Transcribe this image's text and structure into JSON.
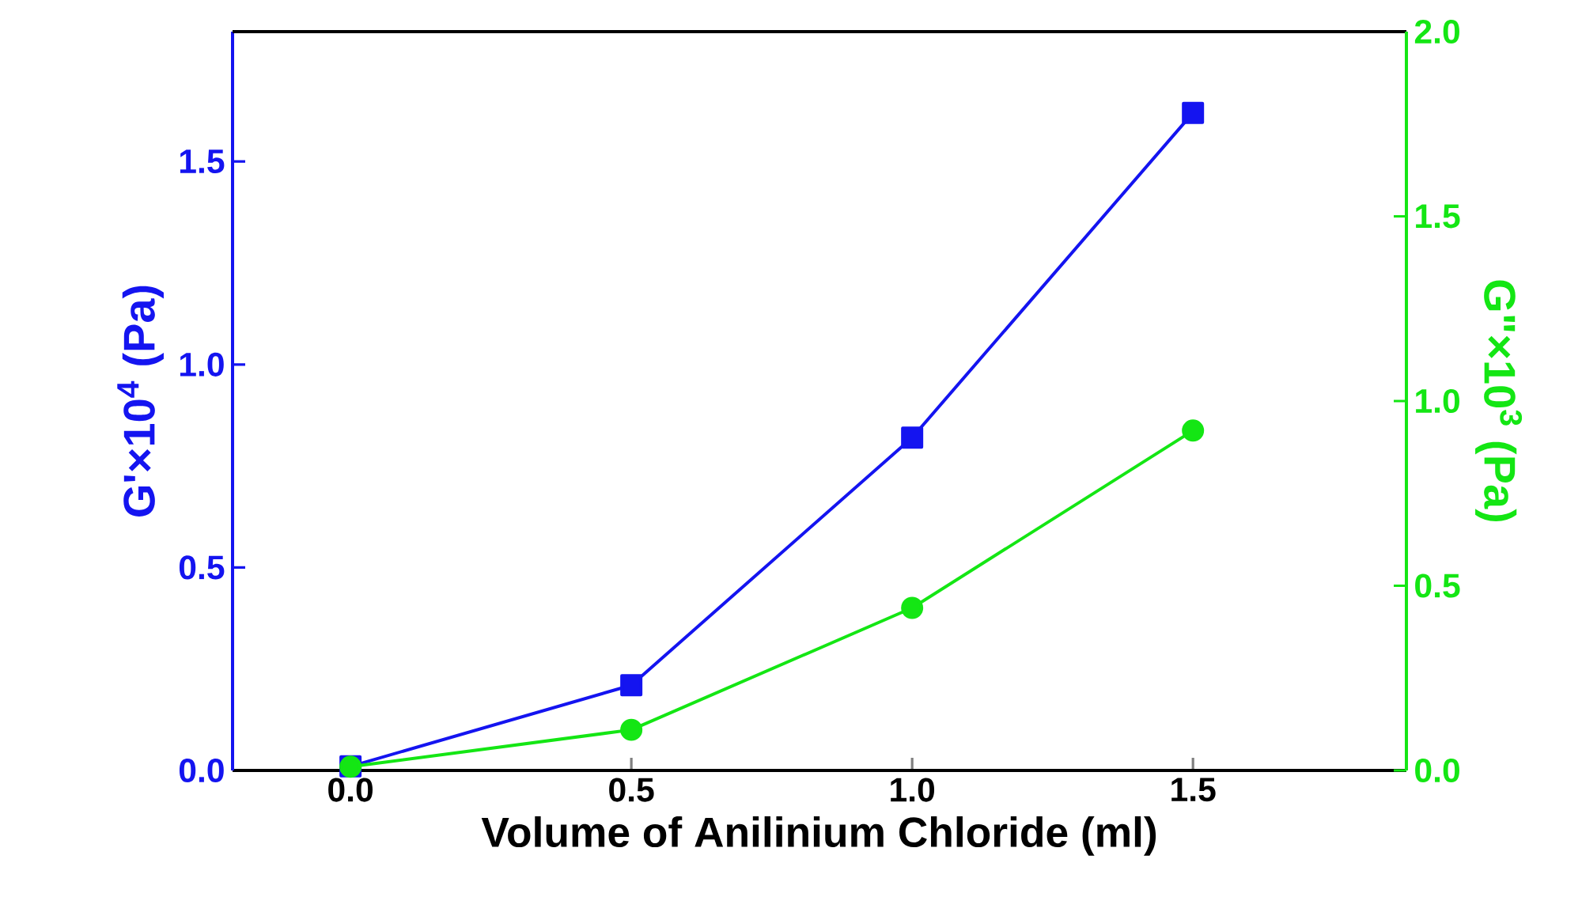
{
  "chart_data": {
    "type": "line",
    "xlabel": "Volume of Anilinium Chloride (ml)",
    "ylabel": "G'×10$^{4}$ (Pa)",
    "y2label": "G\"×10$^{3}$ (Pa)",
    "x": [
      0,
      0.5,
      1.0,
      1.5
    ],
    "series": [
      {
        "color": "#1414f0",
        "values": [
          0.01,
          0.21,
          0.82,
          1.62
        ],
        "marker": "square"
      },
      {
        "color": "#14e614",
        "values": [
          0.01,
          0.11,
          0.44,
          0.92
        ],
        "marker": "circle",
        "axis": "y2"
      }
    ],
    "xlim": [
      -0.21,
      1.88
    ],
    "ylim": [
      0,
      1.82
    ],
    "y2lim": [
      0,
      2.0
    ],
    "xticks": [
      {
        "value": 0,
        "label": "0.0"
      },
      {
        "value": 0.5,
        "label": "0.5"
      },
      {
        "value": 1.0,
        "label": "1.0"
      },
      {
        "value": 1.5,
        "label": "1.5"
      }
    ],
    "yticks": [
      {
        "value": 0,
        "label": "0.0"
      },
      {
        "value": 0.5,
        "label": "0.5"
      },
      {
        "value": 1.0,
        "label": "1.0"
      },
      {
        "value": 1.5,
        "label": "1.5"
      }
    ],
    "y2ticks": [
      {
        "value": 0,
        "label": "0.0"
      },
      {
        "value": 0.5,
        "label": "0.5"
      },
      {
        "value": 1.0,
        "label": "1.0"
      },
      {
        "value": 1.5,
        "label": "1.5"
      },
      {
        "value": 2.0,
        "label": "2.0"
      }
    ],
    "grid": false,
    "legend": false
  }
}
